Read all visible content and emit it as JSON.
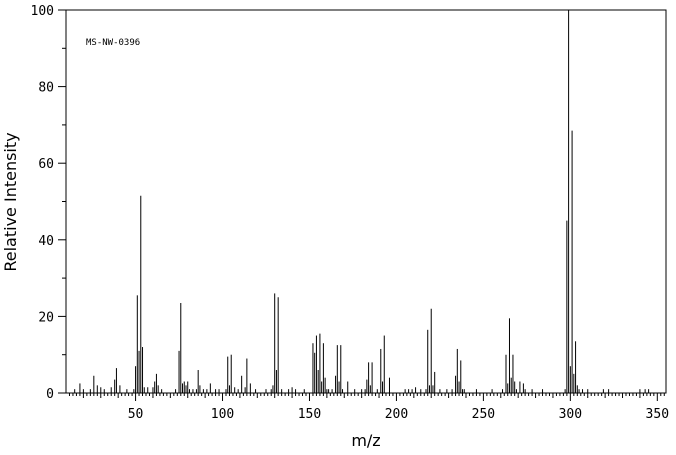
{
  "chart_data": {
    "type": "bar",
    "annotation": "MS-NW-0396",
    "xlabel": "m/z",
    "ylabel": "Relative Intensity",
    "xlim": [
      10,
      355
    ],
    "ylim": [
      0,
      100
    ],
    "x_ticks": [
      50,
      100,
      150,
      200,
      250,
      300,
      350
    ],
    "y_ticks": [
      0,
      20,
      40,
      60,
      80,
      100
    ],
    "grid": false,
    "x": [
      15,
      18,
      20,
      24,
      26,
      28,
      30,
      32,
      36,
      38,
      39,
      41,
      45,
      49,
      50,
      51,
      52,
      53,
      54,
      55,
      57,
      60,
      61,
      62,
      63,
      65,
      73,
      75,
      76,
      77,
      78,
      79,
      80,
      81,
      83,
      85,
      86,
      87,
      89,
      91,
      93,
      96,
      98,
      102,
      103,
      104,
      105,
      107,
      109,
      111,
      113,
      114,
      116,
      119,
      125,
      128,
      129,
      130,
      131,
      132,
      134,
      138,
      140,
      142,
      147,
      152,
      153,
      154,
      155,
      156,
      157,
      158,
      159,
      160,
      161,
      163,
      165,
      166,
      167,
      168,
      169,
      172,
      176,
      180,
      182,
      183,
      184,
      185,
      186,
      189,
      191,
      192,
      193,
      196,
      205,
      207,
      209,
      211,
      214,
      217,
      218,
      219,
      220,
      221,
      222,
      225,
      229,
      232,
      234,
      235,
      236,
      237,
      238,
      239,
      246,
      255,
      261,
      263,
      264,
      265,
      266,
      267,
      268,
      269,
      271,
      273,
      274,
      278,
      284,
      297,
      298,
      299,
      300,
      301,
      302,
      303,
      304,
      305,
      307,
      310,
      319,
      322,
      340,
      343,
      345
    ],
    "values": [
      1,
      2.5,
      1,
      1,
      4.5,
      2,
      1.5,
      1,
      1.5,
      3.5,
      6.5,
      2,
      1,
      1,
      7,
      25.5,
      11,
      51.5,
      12,
      1.5,
      1.5,
      1.5,
      3,
      5,
      2,
      1,
      1,
      11,
      23.5,
      2.5,
      3,
      2,
      3,
      1,
      1,
      1,
      6,
      2,
      1,
      1,
      2.5,
      1,
      1,
      1,
      9.5,
      2,
      10,
      1.5,
      1,
      4.5,
      1.5,
      9,
      2.5,
      1,
      1,
      1,
      2,
      26,
      6,
      25,
      1,
      1,
      1.5,
      1,
      1,
      13,
      10.5,
      15,
      6,
      15.5,
      3,
      13,
      4,
      1,
      1,
      1,
      4.5,
      12.5,
      3,
      12.5,
      1,
      3,
      1,
      1,
      1,
      3.5,
      8,
      2,
      8,
      1,
      11.5,
      3,
      15,
      4,
      1,
      1,
      1,
      1.5,
      1,
      1,
      16.5,
      2,
      22,
      2,
      5.5,
      1,
      1,
      1,
      4.5,
      11.5,
      3,
      8.5,
      1,
      1,
      1,
      1,
      1,
      10,
      2.5,
      19.5,
      4,
      10,
      3,
      1,
      3,
      2.5,
      1,
      1,
      1,
      1,
      45,
      100,
      7,
      68.5,
      5,
      13.5,
      2,
      1,
      1,
      1,
      1,
      1,
      1,
      1,
      1
    ]
  }
}
